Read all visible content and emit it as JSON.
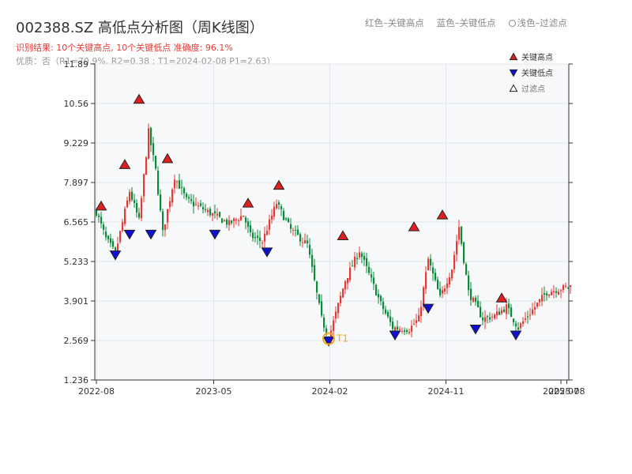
{
  "header": {
    "title": "002388.SZ 高低点分析图（周K线图）",
    "result": "识别结果: 10个关键高点, 10个关键低点  准确度: 96.1%",
    "quality": "优质：否（R1=70.9%, R2=0.38 ; T1=2024-02-08 P1=2.63）"
  },
  "top_legend": {
    "red": "红色–关键高点",
    "blue": "蓝色–关键低点",
    "light": "浅色–过滤点"
  },
  "colors": {
    "up": "#e53935",
    "down": "#0a8a3a",
    "high_marker": "#e02020",
    "low_marker": "#1010d0",
    "t1": "#f5a623",
    "plot_bg": "#f6f8fa",
    "grid": "#e3e6ea"
  },
  "chart_data": {
    "type": "candlestick",
    "title": "002388.SZ 高低点分析图（周K线图）",
    "y_ticks": [
      "1.236",
      "2.569",
      "3.901",
      "5.233",
      "6.565",
      "7.897",
      "9.229",
      "10.56",
      "11.89"
    ],
    "ylim": [
      1.236,
      11.89
    ],
    "x_ticks": [
      "2022-08",
      "2023-05",
      "2024-02",
      "2024-11",
      "2025-07",
      "2025-08"
    ],
    "grid": true,
    "legend_position": "top-right",
    "legend": [
      {
        "label": "关键高点",
        "marker": "triangle-up",
        "color": "#e02020"
      },
      {
        "label": "关键低点",
        "marker": "triangle-down",
        "color": "#1010d0"
      },
      {
        "label": "过滤点",
        "marker": "triangle-up-outline",
        "color": "#555555"
      }
    ],
    "segments": [
      [
        0,
        6.9
      ],
      [
        4,
        6.0
      ],
      [
        8,
        5.5
      ],
      [
        14,
        7.6
      ],
      [
        18,
        6.6
      ],
      [
        22,
        9.6
      ],
      [
        25,
        8.3
      ],
      [
        28,
        6.2
      ],
      [
        33,
        8.1
      ],
      [
        38,
        7.3
      ],
      [
        45,
        7.0
      ],
      [
        56,
        6.5
      ],
      [
        62,
        6.8
      ],
      [
        65,
        6.1
      ],
      [
        70,
        5.9
      ],
      [
        76,
        7.2
      ],
      [
        82,
        6.3
      ],
      [
        89,
        5.8
      ],
      [
        95,
        3.3
      ],
      [
        98,
        2.63
      ],
      [
        105,
        4.6
      ],
      [
        111,
        5.6
      ],
      [
        120,
        3.8
      ],
      [
        125,
        3.0
      ],
      [
        132,
        2.95
      ],
      [
        136,
        3.3
      ],
      [
        140,
        5.3
      ],
      [
        145,
        4.0
      ],
      [
        150,
        5.0
      ],
      [
        153,
        6.4
      ],
      [
        157,
        4.2
      ],
      [
        163,
        3.3
      ],
      [
        168,
        3.4
      ],
      [
        173,
        3.7
      ],
      [
        178,
        3.0
      ],
      [
        183,
        3.5
      ],
      [
        190,
        4.2
      ],
      [
        200,
        4.4
      ]
    ],
    "key_highs": [
      {
        "x": "2022-08",
        "y": 6.9
      },
      {
        "x": "2022-10",
        "y": 8.3
      },
      {
        "x": "2022-12",
        "y": 10.5
      },
      {
        "x": "2023-02",
        "y": 8.5
      },
      {
        "x": "2023-07",
        "y": 7.0
      },
      {
        "x": "2023-09",
        "y": 7.6
      },
      {
        "x": "2024-03",
        "y": 5.9
      },
      {
        "x": "2024-08",
        "y": 6.2
      },
      {
        "x": "2024-10",
        "y": 6.6
      },
      {
        "x": "2025-03",
        "y": 3.8
      }
    ],
    "key_lows": [
      {
        "x": "2022-09",
        "y": 5.6
      },
      {
        "x": "2022-11",
        "y": 6.3
      },
      {
        "x": "2023-01",
        "y": 6.3
      },
      {
        "x": "2023-05",
        "y": 6.3
      },
      {
        "x": "2023-08",
        "y": 5.7
      },
      {
        "x": "2024-02",
        "y": 2.7
      },
      {
        "x": "2024-06",
        "y": 2.9
      },
      {
        "x": "2024-09",
        "y": 3.8
      },
      {
        "x": "2025-01",
        "y": 3.1
      },
      {
        "x": "2025-04",
        "y": 2.9
      }
    ],
    "t1": {
      "label": "T1",
      "x": "2024-02-08",
      "y": 2.63
    }
  }
}
